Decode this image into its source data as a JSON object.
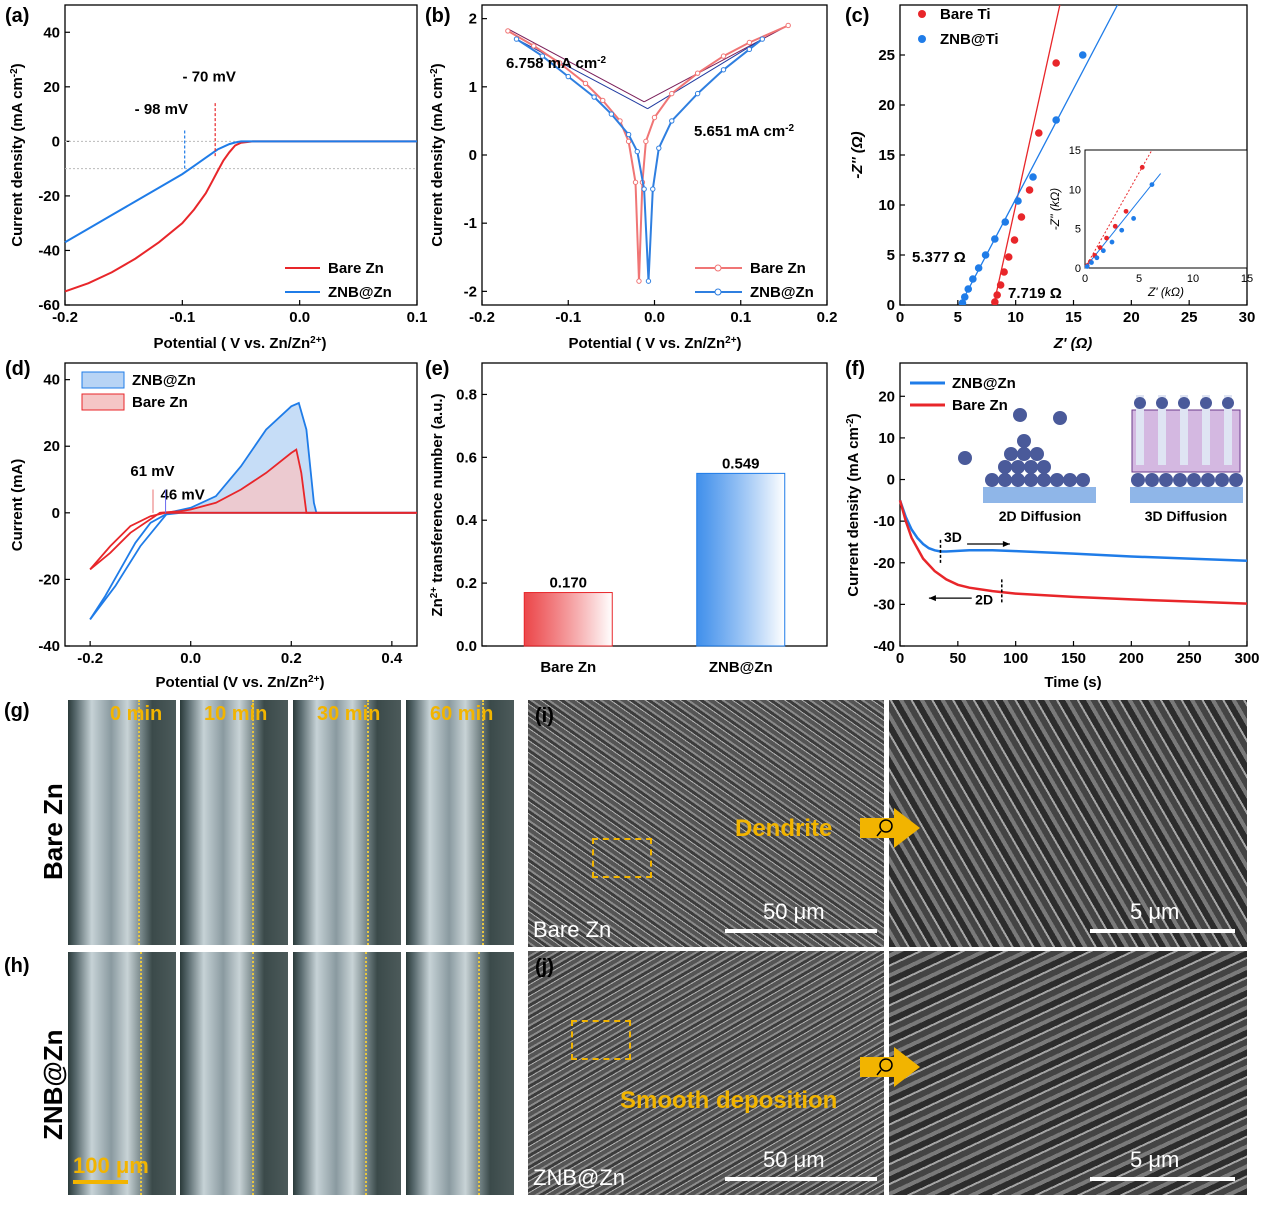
{
  "chart_data": [
    {
      "id": "a",
      "panel_label": "(a)",
      "type": "line",
      "xlabel": "Potential ( V vs. Zn/Zn2+)",
      "ylabel": "Current density (mA cm-2)",
      "xlim": [
        -0.2,
        0.1
      ],
      "ylim": [
        -60,
        50
      ],
      "xticks": [
        -0.2,
        -0.1,
        0.0,
        0.1
      ],
      "xticklabels": [
        "-0.2",
        "-0.1",
        "0.0",
        "0.1"
      ],
      "yticks": [
        -60,
        -40,
        -20,
        0,
        20,
        40
      ],
      "yticklabels": [
        "-60",
        "-40",
        "-20",
        "0",
        "20",
        "40"
      ],
      "series": [
        {
          "name": "Bare Zn",
          "color": "#e8262a",
          "x": [
            -0.2,
            -0.18,
            -0.16,
            -0.14,
            -0.12,
            -0.1,
            -0.09,
            -0.08,
            -0.075,
            -0.07,
            -0.065,
            -0.06,
            -0.055,
            -0.05,
            -0.04,
            0.0,
            0.1
          ],
          "y": [
            -55,
            -52,
            -48,
            -43,
            -37,
            -30,
            -25,
            -19,
            -15,
            -11,
            -7,
            -4,
            -1.5,
            -0.5,
            0,
            0,
            0
          ]
        },
        {
          "name": "ZNB@Zn",
          "color": "#1f7ce8",
          "x": [
            -0.2,
            -0.18,
            -0.16,
            -0.14,
            -0.12,
            -0.1,
            -0.09,
            -0.08,
            -0.07,
            -0.06,
            -0.055,
            -0.05,
            -0.04,
            0.0,
            0.1
          ],
          "y": [
            -37,
            -32,
            -27,
            -22,
            -17,
            -12,
            -9,
            -6,
            -3,
            -1,
            -0.4,
            0,
            0,
            0,
            0
          ]
        }
      ],
      "annotations": [
        {
          "text": "- 70 mV",
          "color": "#e8262a",
          "x": -0.07
        },
        {
          "text": "- 98 mV",
          "color": "#1f7ce8",
          "x": -0.098
        }
      ],
      "reference_lines_y": [
        0,
        -10
      ],
      "legend": "bottom-right"
    },
    {
      "id": "b",
      "panel_label": "(b)",
      "type": "line",
      "xlabel": "Potential ( V vs. Zn/Zn2+)",
      "ylabel": "Current density (mA cm-2)",
      "xlim": [
        -0.2,
        0.2
      ],
      "ylim": [
        -2.2,
        2.2
      ],
      "xticks": [
        -0.2,
        -0.1,
        0.0,
        0.1,
        0.2
      ],
      "xticklabels": [
        "-0.2",
        "-0.1",
        "0.0",
        "0.1",
        "0.2"
      ],
      "yticks": [
        -2,
        -1,
        0,
        1,
        2
      ],
      "yticklabels": [
        "-2",
        "-1",
        "0",
        "1",
        "2"
      ],
      "series": [
        {
          "name": "Bare Zn",
          "color": "#f07575",
          "x": [
            -0.17,
            -0.14,
            -0.11,
            -0.08,
            -0.06,
            -0.04,
            -0.03,
            -0.022,
            -0.018,
            -0.014,
            -0.01,
            0.0,
            0.02,
            0.05,
            0.08,
            0.11,
            0.155
          ],
          "y": [
            1.82,
            1.6,
            1.35,
            1.05,
            0.8,
            0.5,
            0.2,
            -0.4,
            -1.85,
            -0.4,
            0.2,
            0.55,
            0.9,
            1.2,
            1.45,
            1.65,
            1.9
          ]
        },
        {
          "name": "ZNB@Zn",
          "color": "#2f7fe0",
          "x": [
            -0.16,
            -0.13,
            -0.1,
            -0.07,
            -0.05,
            -0.03,
            -0.02,
            -0.012,
            -0.007,
            -0.002,
            0.005,
            0.02,
            0.05,
            0.08,
            0.11,
            0.125
          ],
          "y": [
            1.7,
            1.45,
            1.15,
            0.85,
            0.6,
            0.3,
            0.05,
            -0.5,
            -1.85,
            -0.5,
            0.1,
            0.5,
            0.9,
            1.25,
            1.55,
            1.7
          ]
        }
      ],
      "annotations": [
        {
          "text": "6.758 mA cm-2",
          "color": "#e8262a"
        },
        {
          "text": "5.651 mA cm-2",
          "color": "#1f7ce8"
        }
      ],
      "legend": "bottom-right"
    },
    {
      "id": "c",
      "panel_label": "(c)",
      "type": "scatter",
      "xlabel": "Z' (Ω)",
      "ylabel": "-Z'' (Ω)",
      "xlim": [
        0,
        30
      ],
      "ylim": [
        0,
        30
      ],
      "xticks": [
        0,
        5,
        10,
        15,
        20,
        25,
        30
      ],
      "yticks": [
        0,
        5,
        10,
        15,
        20,
        25
      ],
      "series": [
        {
          "name": "Bare Ti",
          "color": "#e8262a",
          "x": [
            8.2,
            8.4,
            8.7,
            9.0,
            9.4,
            9.9,
            10.5,
            11.2,
            12.0,
            13.5
          ],
          "y": [
            0.3,
            1.0,
            2.0,
            3.3,
            4.8,
            6.5,
            8.8,
            11.5,
            17.2,
            24.2
          ]
        },
        {
          "name": "ZNB@Ti",
          "color": "#1f7ce8",
          "x": [
            5.4,
            5.6,
            5.9,
            6.3,
            6.8,
            7.4,
            8.2,
            9.1,
            10.2,
            11.5,
            13.5,
            15.8
          ],
          "y": [
            0.2,
            0.8,
            1.6,
            2.6,
            3.7,
            5.0,
            6.6,
            8.3,
            10.4,
            12.8,
            18.5,
            25.0
          ]
        }
      ],
      "annotations": [
        {
          "text": "5.377 Ω",
          "color": "#1f7ce8"
        },
        {
          "text": "7.719 Ω",
          "color": "#e8262a"
        }
      ],
      "inset": {
        "xlabel": "Z' (kΩ)",
        "ylabel": "-Z'' (kΩ)",
        "xlim": [
          0,
          15
        ],
        "ylim": [
          0,
          15
        ],
        "xticks": [
          0,
          5,
          10,
          15
        ],
        "yticks": [
          0,
          5,
          10,
          15
        ],
        "series": [
          {
            "name": "Bare Ti",
            "color": "#e8262a",
            "x": [
              0.2,
              0.5,
              0.9,
              1.4,
              2.0,
              2.8,
              3.8,
              5.3
            ],
            "y": [
              0.3,
              0.8,
              1.6,
              2.6,
              3.8,
              5.3,
              7.2,
              12.8
            ]
          },
          {
            "name": "ZNB@Ti",
            "color": "#1f7ce8",
            "x": [
              0.2,
              0.6,
              1.1,
              1.7,
              2.5,
              3.4,
              4.5,
              6.2
            ],
            "y": [
              0.2,
              0.7,
              1.3,
              2.2,
              3.3,
              4.8,
              6.3,
              10.6
            ]
          }
        ]
      },
      "legend": "top-left"
    },
    {
      "id": "d",
      "panel_label": "(d)",
      "type": "area",
      "xlabel": "Potential (V vs. Zn/Zn2+)",
      "ylabel": "Current (mA)",
      "xlim": [
        -0.25,
        0.45
      ],
      "ylim": [
        -40,
        45
      ],
      "xticks": [
        -0.2,
        0.0,
        0.2,
        0.4
      ],
      "xticklabels": [
        "-0.2",
        "0.0",
        "0.2",
        "0.4"
      ],
      "yticks": [
        -40,
        -20,
        0,
        20,
        40
      ],
      "series": [
        {
          "name": "ZNB@Zn",
          "color": "#1f7ce8",
          "fill": "#b8d4f5",
          "cathodic_x": [
            -0.2,
            -0.17,
            -0.14,
            -0.11,
            -0.08,
            -0.05,
            -0.02,
            0.0,
            0.05,
            0.1,
            0.15,
            0.2,
            0.25,
            0.45
          ],
          "cathodic_y": [
            -32,
            -25,
            -17,
            -9,
            -3,
            -0.5,
            0,
            0,
            0,
            0,
            0,
            0,
            0,
            0
          ],
          "anodic_x": [
            -0.2,
            -0.15,
            -0.1,
            -0.046,
            0.0,
            0.05,
            0.1,
            0.15,
            0.2,
            0.215,
            0.23,
            0.245,
            0.25,
            0.45
          ],
          "anodic_y": [
            -32,
            -22,
            -10,
            0,
            1.5,
            5,
            14,
            25,
            32,
            33,
            25,
            3,
            0,
            0
          ]
        },
        {
          "name": "Bare Zn",
          "color": "#e8262a",
          "fill": "#f5c6c6",
          "cathodic_x": [
            -0.2,
            -0.16,
            -0.12,
            -0.08,
            -0.05,
            -0.02,
            0.0,
            0.1,
            0.2,
            0.3,
            0.45
          ],
          "cathodic_y": [
            -17,
            -10,
            -4,
            -1,
            0,
            0,
            0,
            0,
            0,
            0,
            0
          ],
          "anodic_x": [
            -0.2,
            -0.16,
            -0.12,
            -0.061,
            -0.02,
            0.0,
            0.05,
            0.1,
            0.15,
            0.2,
            0.21,
            0.22,
            0.23,
            0.45
          ],
          "anodic_y": [
            -17,
            -12,
            -6,
            0,
            0.5,
            1,
            3,
            7,
            12,
            18,
            19,
            12,
            0,
            0
          ]
        }
      ],
      "annotations": [
        {
          "text": "61 mV",
          "color": "#e87070",
          "x": -0.061
        },
        {
          "text": "46 mV",
          "color": "#6a6af0",
          "x": -0.046
        }
      ],
      "legend": "top-left"
    },
    {
      "id": "e",
      "panel_label": "(e)",
      "type": "bar",
      "xlabel": "",
      "ylabel": "Zn2+ transference number (a.u.)",
      "categories": [
        "Bare Zn",
        "ZNB@Zn"
      ],
      "values": [
        0.17,
        0.549
      ],
      "value_labels": [
        "0.170",
        "0.549"
      ],
      "colors": [
        "#e8262a",
        "#1f7ce8"
      ],
      "ylim": [
        0,
        0.9
      ],
      "yticks": [
        0.0,
        0.2,
        0.4,
        0.6,
        0.8
      ],
      "yticklabels": [
        "0.0",
        "0.2",
        "0.4",
        "0.6",
        "0.8"
      ]
    },
    {
      "id": "f",
      "panel_label": "(f)",
      "type": "line",
      "xlabel": "Time (s)",
      "ylabel": "Current density (mA cm-2)",
      "xlim": [
        0,
        300
      ],
      "ylim": [
        -40,
        28
      ],
      "xticks": [
        0,
        50,
        100,
        150,
        200,
        250,
        300
      ],
      "yticks": [
        -40,
        -30,
        -20,
        -10,
        0,
        10,
        20
      ],
      "series": [
        {
          "name": "ZNB@Zn",
          "color": "#1f7ce8",
          "x": [
            0,
            5,
            10,
            15,
            20,
            25,
            30,
            35,
            40,
            60,
            80,
            100,
            150,
            200,
            250,
            300
          ],
          "y": [
            -5,
            -9,
            -12,
            -14,
            -15.5,
            -16.5,
            -17,
            -17.3,
            -17.3,
            -17,
            -17,
            -17.2,
            -17.8,
            -18.5,
            -19,
            -19.5
          ]
        },
        {
          "name": "Bare Zn",
          "color": "#e8262a",
          "x": [
            0,
            5,
            10,
            20,
            30,
            40,
            50,
            60,
            80,
            100,
            150,
            200,
            250,
            300
          ],
          "y": [
            -5,
            -10,
            -14,
            -19,
            -22,
            -24,
            -25.3,
            -26,
            -26.8,
            -27.4,
            -28.2,
            -28.8,
            -29.3,
            -29.8
          ]
        }
      ],
      "annotations": [
        {
          "text": "3D",
          "x": 35
        },
        {
          "text": "2D",
          "x": 88
        }
      ],
      "inset_labels": [
        "2D Diffusion",
        "3D Diffusion"
      ],
      "legend": "top-left"
    }
  ],
  "optical": {
    "rows": [
      {
        "panel_label": "(g)",
        "row_label": "Bare Zn"
      },
      {
        "panel_label": "(h)",
        "row_label": "ZNB@Zn"
      }
    ],
    "time_labels": [
      "0 min",
      "10 min",
      "30 min",
      "60 min"
    ],
    "scale_bar": "100 μm"
  },
  "sem": {
    "panels": [
      {
        "panel_label": "(i)",
        "sample": "Bare Zn",
        "scale_low": "50 μm",
        "scale_high": "5 μm",
        "annotation": "Dendrite"
      },
      {
        "panel_label": "(j)",
        "sample": "ZNB@Zn",
        "scale_low": "50 μm",
        "scale_high": "5 μm",
        "annotation": "Smooth deposition"
      }
    ]
  }
}
